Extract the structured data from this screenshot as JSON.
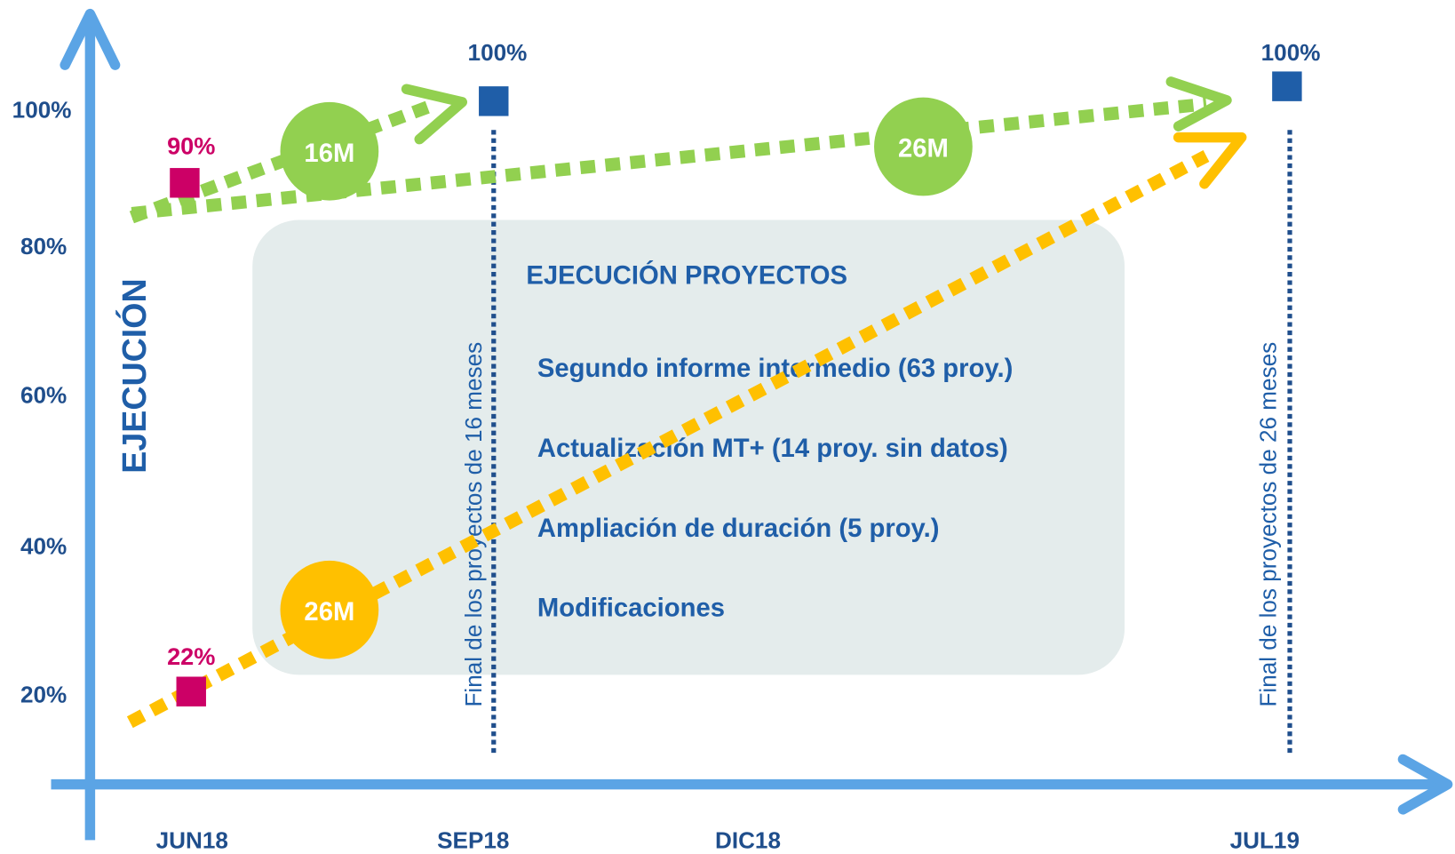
{
  "y_axis": {
    "title": "EJECUCIÓN",
    "labels": [
      "100%",
      "80%",
      "60%",
      "40%",
      "20%"
    ]
  },
  "x_axis": {
    "labels": [
      "JUN18",
      "SEP18",
      "DIC18",
      "JUL19"
    ]
  },
  "markers": {
    "start_green": "90%",
    "start_orange": "22%",
    "end_16": "100%",
    "end_26": "100%"
  },
  "circles": {
    "green_16": "16M",
    "green_26": "26M",
    "orange_26": "26M"
  },
  "reference_lines": [
    "Final de los proyectos de 16 meses",
    "Final de los proyectos de 26 meses"
  ],
  "panel": {
    "title": "EJECUCIÓN PROYECTOS",
    "items": [
      "Segundo informe intermedio (63 proy.)",
      "Actualización MT+ (14 proy. sin datos)",
      "Ampliación de duración (5 proy.)",
      "Modificaciones"
    ]
  }
}
